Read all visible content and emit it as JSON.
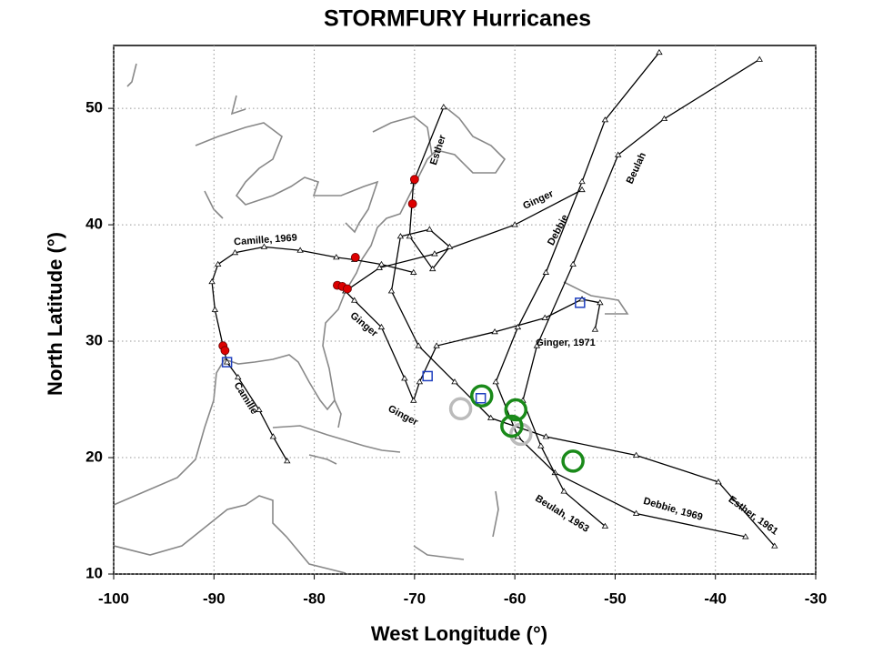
{
  "chart_data": {
    "type": "line",
    "title": "STORMFURY Hurricanes",
    "xlabel": "West Longitude (°)",
    "ylabel": "North Latitude (°)",
    "xlim": [
      -100,
      -30
    ],
    "ylim": [
      10,
      55.4
    ],
    "xticks": [
      -100,
      -90,
      -80,
      -70,
      -60,
      -50,
      -40,
      -30
    ],
    "yticks": [
      10,
      20,
      30,
      40,
      50
    ],
    "grid": true,
    "tracks": [
      {
        "color": "#000000",
        "x": [
          -82.7,
          -84.1,
          -85.5,
          -87.6,
          -88.7,
          -89.1,
          -89.9,
          -90.2,
          -89.6,
          -87.9,
          -85.0,
          -81.4,
          -77.8,
          -76.0,
          -73.3,
          -70.1
        ],
        "y": [
          19.7,
          21.8,
          24.1,
          26.9,
          28.2,
          29.6,
          32.7,
          35.1,
          36.6,
          37.6,
          38.1,
          37.8,
          37.2,
          37.0,
          36.6,
          35.9
        ]
      },
      {
        "color": "#000000",
        "x": [
          -52.0,
          -51.5,
          -53.3,
          -57.0,
          -62.0,
          -67.8,
          -69.5,
          -70.1,
          -71.0,
          -73.3,
          -76.0,
          -76.9,
          -73.5,
          -68.0,
          -60.0,
          -53.3
        ],
        "y": [
          31.0,
          33.3,
          33.6,
          32.0,
          30.8,
          29.6,
          26.5,
          24.9,
          26.8,
          31.2,
          33.5,
          34.3,
          36.3,
          37.5,
          40.0,
          43.0
        ]
      },
      {
        "color": "#000000",
        "x": [
          -37.0,
          -47.9,
          -56.0,
          -59.7,
          -61.9,
          -59.7,
          -56.9,
          -53.3,
          -51.0,
          -45.6
        ],
        "y": [
          13.2,
          15.2,
          18.7,
          21.8,
          26.5,
          31.2,
          35.9,
          43.7,
          49.0,
          54.8
        ]
      },
      {
        "color": "#000000",
        "x": [
          -34.1,
          -39.7,
          -47.9,
          -56.9,
          -62.4,
          -66.0,
          -69.6,
          -72.3,
          -71.4,
          -68.5,
          -66.5,
          -68.2,
          -70.5,
          -70.1,
          -67.1
        ],
        "y": [
          12.4,
          17.9,
          20.2,
          21.8,
          23.4,
          26.5,
          29.6,
          34.3,
          39.0,
          39.6,
          38.1,
          36.2,
          39.0,
          43.7,
          50.1
        ]
      },
      {
        "color": "#000000",
        "x": [
          -51.0,
          -55.1,
          -57.4,
          -59.2,
          -57.8,
          -54.2,
          -49.7,
          -45.1,
          -35.6
        ],
        "y": [
          14.1,
          17.1,
          21.0,
          24.9,
          29.6,
          36.6,
          46.0,
          49.1,
          54.2
        ]
      }
    ],
    "red_points": {
      "color": "#dd0000",
      "x": [
        -89.1,
        -88.9,
        -77.7,
        -77.2,
        -76.7,
        -75.9,
        -70.2,
        -70.0
      ],
      "y": [
        29.6,
        29.2,
        34.8,
        34.7,
        34.5,
        37.2,
        41.8,
        43.9
      ]
    },
    "blue_squares": {
      "color": "#1f3fbf",
      "x": [
        -88.7,
        -68.7,
        -63.4,
        -53.5
      ],
      "y": [
        28.2,
        27.0,
        25.1,
        33.3
      ]
    },
    "green_circles": {
      "color": "#1a8a1a",
      "x": [
        -63.3,
        -59.9,
        -60.3,
        -54.2
      ],
      "y": [
        25.3,
        24.1,
        22.7,
        19.7
      ]
    },
    "gray_circles": {
      "color": "#bbbbbb",
      "x": [
        -65.4,
        -59.4
      ],
      "y": [
        24.2,
        22.0
      ]
    },
    "annotations": [
      "Esther",
      "Ginger",
      "Debbie",
      "Beulah",
      "Camille, 1969",
      "Ginger",
      "Ginger, 1971",
      "Camille",
      "Ginger",
      "Beulah, 1963",
      "Debbie, 1969",
      "Esther, 1961"
    ]
  }
}
